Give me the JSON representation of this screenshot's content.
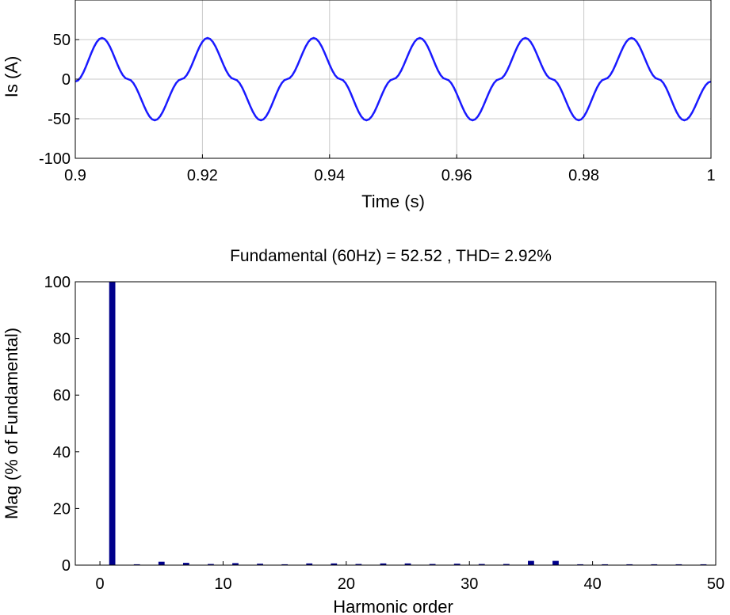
{
  "chart_data": [
    {
      "type": "line",
      "title": "",
      "xlabel": "Time (s)",
      "ylabel": "Is (A)",
      "xlim": [
        0.9,
        1.0
      ],
      "ylim": [
        -100,
        100
      ],
      "xticks": [
        0.9,
        0.92,
        0.94,
        0.96,
        0.98,
        1.0
      ],
      "xtick_labels": [
        "0.9",
        "0.92",
        "0.94",
        "0.96",
        "0.98",
        "1"
      ],
      "yticks": [
        -100,
        -50,
        0,
        50
      ],
      "ytick_labels": [
        "-100",
        "-50",
        "0",
        "50"
      ],
      "grid": true,
      "line_color": "#1a1aff",
      "series": [
        {
          "x": [
            0.9,
            0.9042,
            0.9083,
            0.9125,
            0.9167,
            0.9208,
            0.925,
            0.9292,
            0.9333,
            0.9375,
            0.9417,
            0.9458,
            0.95,
            0.9542,
            0.9583,
            0.9625,
            0.9667,
            0.9708,
            0.975,
            0.9792,
            0.9833,
            0.9875,
            0.9917,
            0.9958,
            1.0
          ],
          "y": [
            -3,
            52,
            0,
            -52,
            0,
            52,
            0,
            -52,
            0,
            52,
            0,
            -52,
            0,
            52,
            0,
            -52,
            0,
            52,
            0,
            -52,
            0,
            52,
            0,
            -52,
            -3
          ]
        }
      ]
    },
    {
      "type": "bar",
      "title": "Fundamental (60Hz) = 52.52 , THD= 2.92%",
      "xlabel": "Harmonic order",
      "ylabel": "Mag (% of Fundamental)",
      "xlim": [
        -2,
        50
      ],
      "ylim": [
        0,
        100
      ],
      "xticks": [
        0,
        10,
        20,
        30,
        40,
        50
      ],
      "xtick_labels": [
        "0",
        "10",
        "20",
        "30",
        "40",
        "50"
      ],
      "yticks": [
        0,
        20,
        40,
        60,
        80,
        100
      ],
      "ytick_labels": [
        "0",
        "20",
        "40",
        "60",
        "80",
        "100"
      ],
      "grid": false,
      "bar_color": "#00008b",
      "categories": [
        1,
        3,
        5,
        7,
        9,
        11,
        13,
        15,
        17,
        19,
        21,
        23,
        25,
        27,
        29,
        31,
        33,
        35,
        37,
        39,
        41,
        43,
        45,
        47,
        49
      ],
      "values": [
        100,
        0.3,
        1.2,
        0.8,
        0.4,
        0.7,
        0.5,
        0.3,
        0.6,
        0.6,
        0.4,
        0.6,
        0.6,
        0.4,
        0.5,
        0.4,
        0.4,
        1.5,
        1.5,
        0.3,
        0.3,
        0.3,
        0.3,
        0.3,
        0.3
      ]
    }
  ]
}
